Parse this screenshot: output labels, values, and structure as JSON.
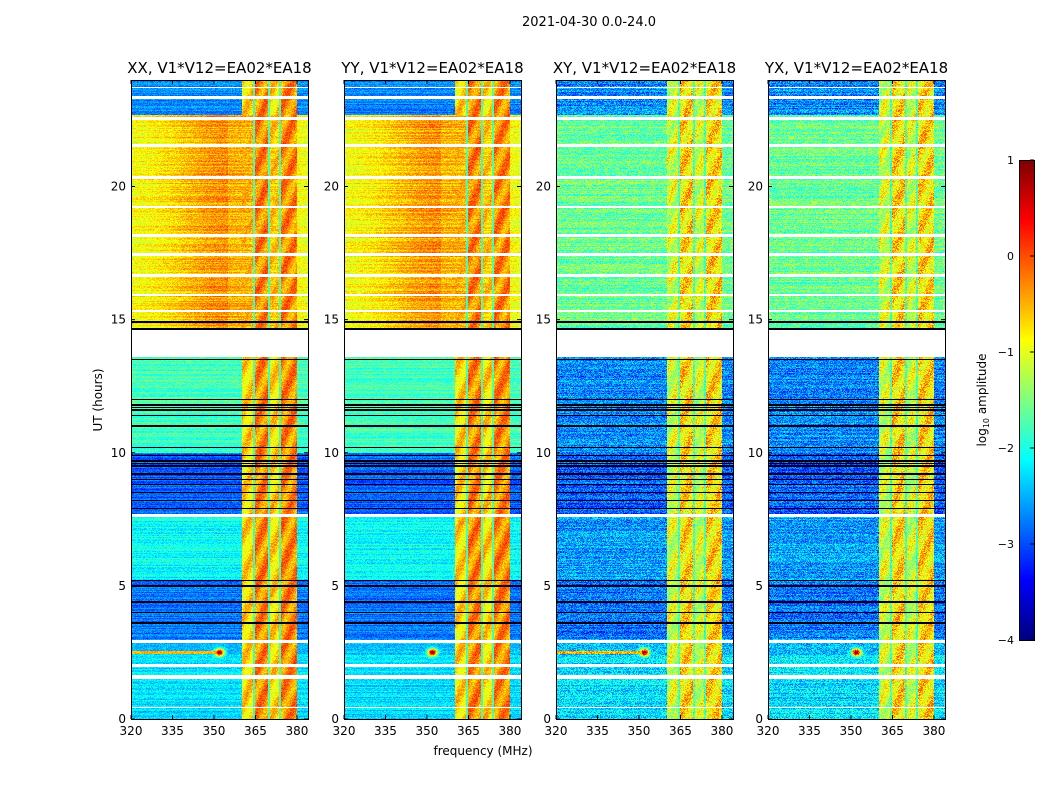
{
  "chart_data": {
    "type": "heatmap",
    "title": "2021-04-30 0.0-24.0",
    "xlabel": "frequency (MHz)",
    "ylabel": "UT (hours)",
    "xlim": [
      320,
      384
    ],
    "ylim": [
      0,
      24
    ],
    "xticks": [
      320,
      335,
      350,
      365,
      380
    ],
    "yticks": [
      0,
      5,
      10,
      15,
      20
    ],
    "panels": [
      {
        "title": "XX, V1*V12=EA02*EA18",
        "pol": "parallel"
      },
      {
        "title": "YY, V1*V12=EA02*EA18",
        "pol": "parallel"
      },
      {
        "title": "XY, V1*V12=EA02*EA18",
        "pol": "cross"
      },
      {
        "title": "YX, V1*V12=EA02*EA18",
        "pol": "cross"
      }
    ],
    "colorbar": {
      "label_prefix": "log",
      "label_sub": "10",
      "label_suffix": " amplitude",
      "range": [
        -4,
        1
      ],
      "ticks": [
        -4,
        -3,
        -2,
        -1,
        0,
        1
      ],
      "tick_labels": [
        "−4",
        "−3",
        "−2",
        "−1",
        "0",
        "1"
      ],
      "colormap": "jet"
    },
    "time_segments": [
      {
        "t0": 0.0,
        "t1": 2.4,
        "parallel": -2.3,
        "cross": -2.3
      },
      {
        "t0": 2.4,
        "t1": 3.0,
        "parallel": -2.5,
        "cross": -2.5
      },
      {
        "t0": 3.0,
        "t1": 5.2,
        "parallel": -2.8,
        "cross": -2.8
      },
      {
        "t0": 5.2,
        "t1": 7.6,
        "parallel": -2.1,
        "cross": -2.6
      },
      {
        "t0": 7.6,
        "t1": 10.0,
        "parallel": -2.9,
        "cross": -2.9
      },
      {
        "t0": 10.0,
        "t1": 13.6,
        "parallel": -1.8,
        "cross": -2.7
      },
      {
        "t0": 14.6,
        "t1": 22.7,
        "parallel": -0.6,
        "cross": -1.6
      },
      {
        "t0": 22.7,
        "t1": 24.0,
        "parallel": -2.7,
        "cross": -2.7
      }
    ],
    "band": {
      "f0": 360,
      "f1": 380,
      "parallel": -0.3,
      "cross": -0.7,
      "gaps_mhz": [
        364.5,
        370,
        374
      ]
    },
    "rfi": {
      "freq_mhz": 352,
      "hour": 2.5,
      "level": 1.0
    },
    "flagged_hours": [
      [
        13.6,
        14.6
      ],
      [
        0.4,
        0.45
      ],
      [
        1.5,
        1.65
      ],
      [
        1.95,
        2.05
      ],
      [
        2.85,
        2.95
      ],
      [
        7.6,
        7.7
      ],
      [
        15.3,
        15.35
      ],
      [
        15.9,
        15.95
      ],
      [
        16.6,
        16.7
      ],
      [
        17.4,
        17.5
      ],
      [
        18.1,
        18.2
      ],
      [
        19.2,
        19.25
      ],
      [
        20.3,
        20.4
      ],
      [
        21.5,
        21.6
      ],
      [
        22.5,
        22.6
      ],
      [
        23.3,
        23.4
      ],
      [
        23.7,
        23.75
      ]
    ],
    "low_rows_hours": [
      3.6,
      4.0,
      4.4,
      5.0,
      5.2,
      7.9,
      8.2,
      8.5,
      8.8,
      9.0,
      9.2,
      9.5,
      9.6,
      9.7,
      9.9,
      10.2,
      11.0,
      11.4,
      11.6,
      11.7,
      11.8,
      12.0,
      13.5,
      14.65,
      14.9
    ]
  }
}
